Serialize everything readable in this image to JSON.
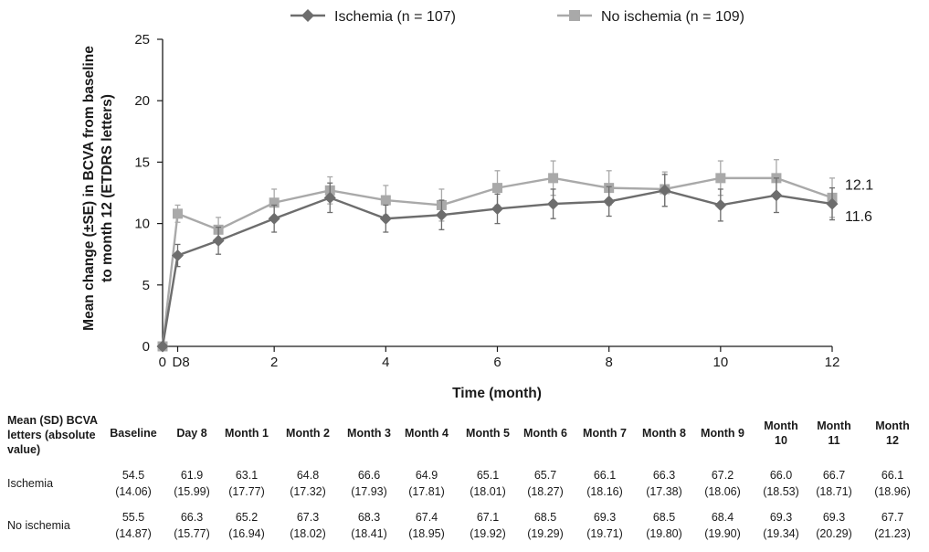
{
  "chart_data": {
    "type": "line",
    "xlabel": "Time (month)",
    "ylabel_lines": [
      "Mean change (±SE) in BCVA from baseline",
      "to month 12 (ETDRS letters)"
    ],
    "xlim": [
      0,
      12
    ],
    "ylim": [
      0,
      25
    ],
    "x_ticks": [
      {
        "value": 0,
        "label": "0"
      },
      {
        "value": 0.27,
        "label": "D8"
      },
      {
        "value": 2,
        "label": "2"
      },
      {
        "value": 4,
        "label": "4"
      },
      {
        "value": 6,
        "label": "6"
      },
      {
        "value": 8,
        "label": "8"
      },
      {
        "value": 10,
        "label": "10"
      },
      {
        "value": 12,
        "label": "12"
      }
    ],
    "y_ticks": [
      0,
      5,
      10,
      15,
      20,
      25
    ],
    "grid": false,
    "legend_position": "top",
    "x": [
      0,
      0.27,
      1,
      2,
      3,
      4,
      5,
      6,
      7,
      8,
      9,
      10,
      11,
      12
    ],
    "series": [
      {
        "name": "Ischemia (n = 107)",
        "marker": "diamond",
        "color": "#6d6d6d",
        "values": [
          0,
          7.4,
          8.6,
          10.4,
          12.1,
          10.4,
          10.7,
          11.2,
          11.6,
          11.8,
          12.7,
          11.5,
          12.3,
          11.6
        ],
        "se": [
          0,
          0.9,
          1.1,
          1.1,
          1.2,
          1.1,
          1.2,
          1.2,
          1.2,
          1.2,
          1.3,
          1.3,
          1.4,
          1.3
        ],
        "end_label": "11.6"
      },
      {
        "name": "No ischemia (n = 109)",
        "marker": "square",
        "color": "#a9a9a9",
        "values": [
          0,
          10.8,
          9.5,
          11.7,
          12.7,
          11.9,
          11.5,
          12.9,
          13.7,
          12.9,
          12.8,
          13.7,
          13.7,
          12.1
        ],
        "se": [
          0,
          0.7,
          1.0,
          1.1,
          1.1,
          1.2,
          1.3,
          1.4,
          1.4,
          1.4,
          1.4,
          1.4,
          1.5,
          1.6
        ],
        "end_label": "12.1"
      }
    ]
  },
  "table": {
    "corner_header": "Mean  (SD) BCVA letters (absolute value)",
    "columns": [
      "Baseline",
      "Day 8",
      "Month 1",
      "Month 2",
      "Month 3",
      "Month 4",
      "Month 5",
      "Month 6",
      "Month 7",
      "Month 8",
      "Month 9",
      "Month 10",
      "Month 11",
      "Month 12"
    ],
    "rows": [
      {
        "label": "Ischemia",
        "means": [
          "54.5",
          "61.9",
          "63.1",
          "64.8",
          "66.6",
          "64.9",
          "65.1",
          "65.7",
          "66.1",
          "66.3",
          "67.2",
          "66.0",
          "66.7",
          "66.1"
        ],
        "sds": [
          "(14.06)",
          "(15.99)",
          "(17.77)",
          "(17.32)",
          "(17.93)",
          "(17.81)",
          "(18.01)",
          "(18.27)",
          "(18.16)",
          "(17.38)",
          "(18.06)",
          "(18.53)",
          "(18.71)",
          "(18.96)"
        ]
      },
      {
        "label": "No ischemia",
        "means": [
          "55.5",
          "66.3",
          "65.2",
          "67.3",
          "68.3",
          "67.4",
          "67.1",
          "68.5",
          "69.3",
          "68.5",
          "68.4",
          "69.3",
          "69.3",
          "67.7"
        ],
        "sds": [
          "(14.87)",
          "(15.77)",
          "(16.94)",
          "(18.02)",
          "(18.41)",
          "(18.95)",
          "(19.92)",
          "(19.29)",
          "(19.71)",
          "(19.80)",
          "(19.90)",
          "(19.34)",
          "(20.29)",
          "(21.23)"
        ]
      }
    ]
  }
}
